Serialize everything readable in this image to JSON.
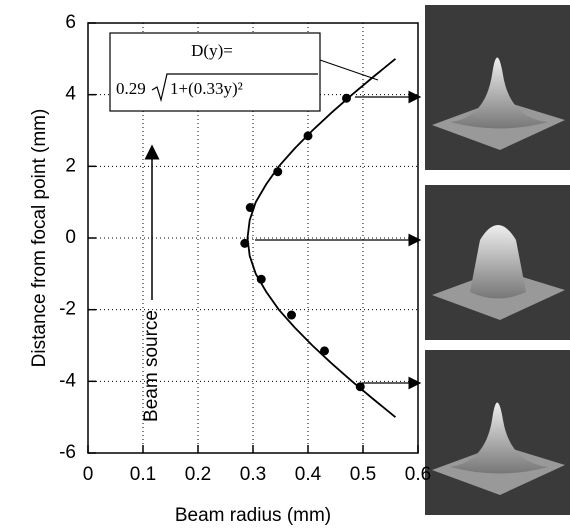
{
  "chart_data": {
    "type": "scatter",
    "xlabel": "Beam radius (mm)",
    "ylabel": "Distance from focal point (mm)",
    "xlim": [
      0,
      0.6
    ],
    "xticks": [
      0,
      0.1,
      0.2,
      0.3,
      0.4,
      0.5,
      0.6
    ],
    "ylim": [
      -6,
      6
    ],
    "yticks": [
      -6,
      -4,
      -2,
      0,
      2,
      4,
      6
    ],
    "grid": true,
    "color": "#000000",
    "x": [
      0.47,
      0.4,
      0.345,
      0.295,
      0.285,
      0.315,
      0.37,
      0.43,
      0.495
    ],
    "y": [
      3.9,
      2.85,
      1.85,
      0.85,
      -0.15,
      -1.15,
      -2.15,
      -3.15,
      -4.15
    ],
    "curve": {
      "x": [
        0.559,
        0.519,
        0.48,
        0.443,
        0.408,
        0.376,
        0.347,
        0.324,
        0.305,
        0.294,
        0.29,
        0.294,
        0.305,
        0.324,
        0.347,
        0.376,
        0.408,
        0.443,
        0.48,
        0.519,
        0.559
      ],
      "y": [
        -5,
        -4.5,
        -4,
        -3.5,
        -3,
        -2.5,
        -2,
        -1.5,
        -1,
        -0.5,
        0,
        0.5,
        1,
        1.5,
        2,
        2.5,
        3,
        3.5,
        4,
        4.5,
        5
      ]
    },
    "formula": {
      "lhs": "D(y)=",
      "coef": "0.29",
      "radicand": "1+(0.33y)²"
    },
    "annotation": "Beam source"
  }
}
